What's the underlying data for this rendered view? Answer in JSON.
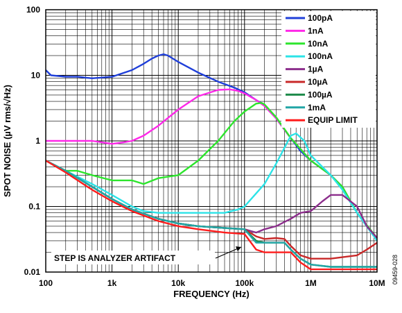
{
  "chart_data": {
    "type": "line",
    "xlabel": "FREQUENCY (Hz)",
    "ylabel": "SPOT NOISE (µV rms/√Hz)",
    "xscale": "log",
    "yscale": "log",
    "xlim": [
      100,
      10000000
    ],
    "ylim": [
      0.01,
      100
    ],
    "x_tick_labels": [
      "100",
      "1k",
      "10k",
      "100k",
      "1M",
      "10M"
    ],
    "y_tick_labels": [
      "100",
      "10",
      "1",
      "0.1",
      "0.01"
    ],
    "grid": true,
    "legend_position": "top-right",
    "annotation": "STEP IS ANALYZER ARTIFACT",
    "figure_id": "09459-028",
    "series": [
      {
        "name": "100pA",
        "color": "#1f3fd9",
        "points": [
          [
            100,
            12
          ],
          [
            120,
            10
          ],
          [
            200,
            9.5
          ],
          [
            300,
            9.5
          ],
          [
            500,
            9
          ],
          [
            1000,
            9.5
          ],
          [
            2000,
            12
          ],
          [
            3000,
            15
          ],
          [
            4000,
            18
          ],
          [
            5000,
            20
          ],
          [
            6000,
            21
          ],
          [
            7000,
            20
          ],
          [
            10000,
            16
          ],
          [
            20000,
            11
          ],
          [
            40000,
            8
          ],
          [
            70000,
            6.5
          ],
          [
            100000,
            5.5
          ],
          [
            150000,
            4.2
          ],
          [
            200000,
            3.5
          ],
          [
            300000,
            2.2
          ],
          [
            500000,
            1.1
          ],
          [
            700000,
            0.7
          ],
          [
            1000000,
            0.5
          ],
          [
            2000000,
            0.3
          ],
          [
            3000000,
            0.2
          ],
          [
            5000000,
            0.08
          ],
          [
            7000000,
            0.05
          ],
          [
            10000000,
            0.033
          ]
        ]
      },
      {
        "name": "1nA",
        "color": "#ff28e8",
        "points": [
          [
            100,
            1
          ],
          [
            150,
            1
          ],
          [
            200,
            1
          ],
          [
            500,
            1
          ],
          [
            700,
            0.95
          ],
          [
            1000,
            0.9
          ],
          [
            1500,
            0.95
          ],
          [
            2000,
            1
          ],
          [
            3000,
            1.2
          ],
          [
            5000,
            1.7
          ],
          [
            10000,
            3
          ],
          [
            20000,
            4.8
          ],
          [
            40000,
            6
          ],
          [
            60000,
            6.1
          ],
          [
            80000,
            5.8
          ],
          [
            100000,
            5.3
          ],
          [
            150000,
            4.2
          ],
          [
            200000,
            3.4
          ],
          [
            300000,
            2.2
          ],
          [
            500000,
            1.1
          ],
          [
            1000000,
            0.5
          ],
          [
            2000000,
            0.3
          ],
          [
            3000000,
            0.2
          ],
          [
            5000000,
            0.08
          ],
          [
            10000000,
            0.033
          ]
        ]
      },
      {
        "name": "10nA",
        "color": "#2de52d",
        "points": [
          [
            100,
            0.5
          ],
          [
            200,
            0.35
          ],
          [
            300,
            0.35
          ],
          [
            500,
            0.3
          ],
          [
            1000,
            0.25
          ],
          [
            2000,
            0.25
          ],
          [
            3000,
            0.22
          ],
          [
            5000,
            0.27
          ],
          [
            10000,
            0.3
          ],
          [
            20000,
            0.5
          ],
          [
            40000,
            1
          ],
          [
            70000,
            2
          ],
          [
            100000,
            2.8
          ],
          [
            150000,
            3.7
          ],
          [
            180000,
            3.8
          ],
          [
            200000,
            3.6
          ],
          [
            300000,
            2.3
          ],
          [
            500000,
            1.1
          ],
          [
            1000000,
            0.5
          ],
          [
            2000000,
            0.3
          ],
          [
            3000000,
            0.2
          ],
          [
            5000000,
            0.08
          ],
          [
            10000000,
            0.033
          ]
        ]
      },
      {
        "name": "100nA",
        "color": "#2ce3e7",
        "points": [
          [
            100,
            0.5
          ],
          [
            200,
            0.35
          ],
          [
            500,
            0.22
          ],
          [
            1000,
            0.15
          ],
          [
            2000,
            0.1
          ],
          [
            3000,
            0.085
          ],
          [
            5000,
            0.08
          ],
          [
            10000,
            0.08
          ],
          [
            20000,
            0.08
          ],
          [
            50000,
            0.08
          ],
          [
            80000,
            0.09
          ],
          [
            100000,
            0.1
          ],
          [
            200000,
            0.22
          ],
          [
            300000,
            0.45
          ],
          [
            500000,
            1.2
          ],
          [
            600000,
            1.3
          ],
          [
            800000,
            1
          ],
          [
            1000000,
            0.6
          ],
          [
            2000000,
            0.3
          ],
          [
            3000000,
            0.18
          ],
          [
            5000000,
            0.08
          ],
          [
            10000000,
            0.03
          ]
        ]
      },
      {
        "name": "1µA",
        "color": "#8c2e8c",
        "points": [
          [
            100,
            0.5
          ],
          [
            200,
            0.35
          ],
          [
            500,
            0.2
          ],
          [
            1000,
            0.13
          ],
          [
            2000,
            0.09
          ],
          [
            5000,
            0.065
          ],
          [
            10000,
            0.055
          ],
          [
            20000,
            0.05
          ],
          [
            50000,
            0.047
          ],
          [
            100000,
            0.045
          ],
          [
            150000,
            0.04
          ],
          [
            200000,
            0.045
          ],
          [
            300000,
            0.05
          ],
          [
            500000,
            0.065
          ],
          [
            700000,
            0.08
          ],
          [
            1000000,
            0.085
          ],
          [
            1500000,
            0.12
          ],
          [
            2000000,
            0.15
          ],
          [
            3000000,
            0.15
          ],
          [
            5000000,
            0.1
          ],
          [
            7000000,
            0.05
          ],
          [
            10000000,
            0.033
          ]
        ]
      },
      {
        "name": "10µA",
        "color": "#c82828",
        "points": [
          [
            100,
            0.5
          ],
          [
            200,
            0.35
          ],
          [
            500,
            0.2
          ],
          [
            1000,
            0.13
          ],
          [
            2000,
            0.09
          ],
          [
            5000,
            0.065
          ],
          [
            10000,
            0.055
          ],
          [
            20000,
            0.05
          ],
          [
            50000,
            0.047
          ],
          [
            100000,
            0.045
          ],
          [
            150000,
            0.035
          ],
          [
            200000,
            0.032
          ],
          [
            300000,
            0.033
          ],
          [
            400000,
            0.032
          ],
          [
            500000,
            0.025
          ],
          [
            700000,
            0.018
          ],
          [
            1000000,
            0.016
          ],
          [
            2000000,
            0.016
          ],
          [
            5000000,
            0.018
          ],
          [
            7000000,
            0.022
          ],
          [
            10000000,
            0.028
          ]
        ]
      },
      {
        "name": "100µA",
        "color": "#1d8a4a",
        "points": [
          [
            100,
            0.5
          ],
          [
            200,
            0.35
          ],
          [
            500,
            0.2
          ],
          [
            1000,
            0.13
          ],
          [
            2000,
            0.09
          ],
          [
            5000,
            0.065
          ],
          [
            10000,
            0.055
          ],
          [
            20000,
            0.05
          ],
          [
            50000,
            0.047
          ],
          [
            100000,
            0.045
          ],
          [
            150000,
            0.03
          ],
          [
            200000,
            0.028
          ],
          [
            300000,
            0.028
          ],
          [
            400000,
            0.028
          ],
          [
            500000,
            0.022
          ],
          [
            700000,
            0.016
          ],
          [
            1000000,
            0.013
          ],
          [
            2000000,
            0.012
          ],
          [
            5000000,
            0.012
          ],
          [
            10000000,
            0.012
          ]
        ]
      },
      {
        "name": "1mA",
        "color": "#22a6a6",
        "points": [
          [
            100,
            0.5
          ],
          [
            200,
            0.35
          ],
          [
            500,
            0.2
          ],
          [
            1000,
            0.13
          ],
          [
            2000,
            0.09
          ],
          [
            5000,
            0.065
          ],
          [
            10000,
            0.055
          ],
          [
            20000,
            0.05
          ],
          [
            50000,
            0.047
          ],
          [
            100000,
            0.045
          ],
          [
            150000,
            0.028
          ],
          [
            200000,
            0.028
          ],
          [
            300000,
            0.028
          ],
          [
            400000,
            0.028
          ],
          [
            500000,
            0.022
          ],
          [
            700000,
            0.016
          ],
          [
            1000000,
            0.013
          ],
          [
            2000000,
            0.012
          ],
          [
            5000000,
            0.012
          ],
          [
            10000000,
            0.012
          ]
        ]
      },
      {
        "name": "EQUIP LIMIT",
        "color": "#ff1c1c",
        "points": [
          [
            100,
            0.5
          ],
          [
            200,
            0.33
          ],
          [
            500,
            0.18
          ],
          [
            1000,
            0.12
          ],
          [
            2000,
            0.085
          ],
          [
            5000,
            0.06
          ],
          [
            10000,
            0.05
          ],
          [
            20000,
            0.045
          ],
          [
            50000,
            0.04
          ],
          [
            100000,
            0.038
          ],
          [
            150000,
            0.022
          ],
          [
            200000,
            0.02
          ],
          [
            300000,
            0.02
          ],
          [
            500000,
            0.02
          ],
          [
            700000,
            0.014
          ],
          [
            1000000,
            0.011
          ],
          [
            2000000,
            0.011
          ],
          [
            5000000,
            0.011
          ],
          [
            10000000,
            0.011
          ]
        ]
      }
    ]
  }
}
